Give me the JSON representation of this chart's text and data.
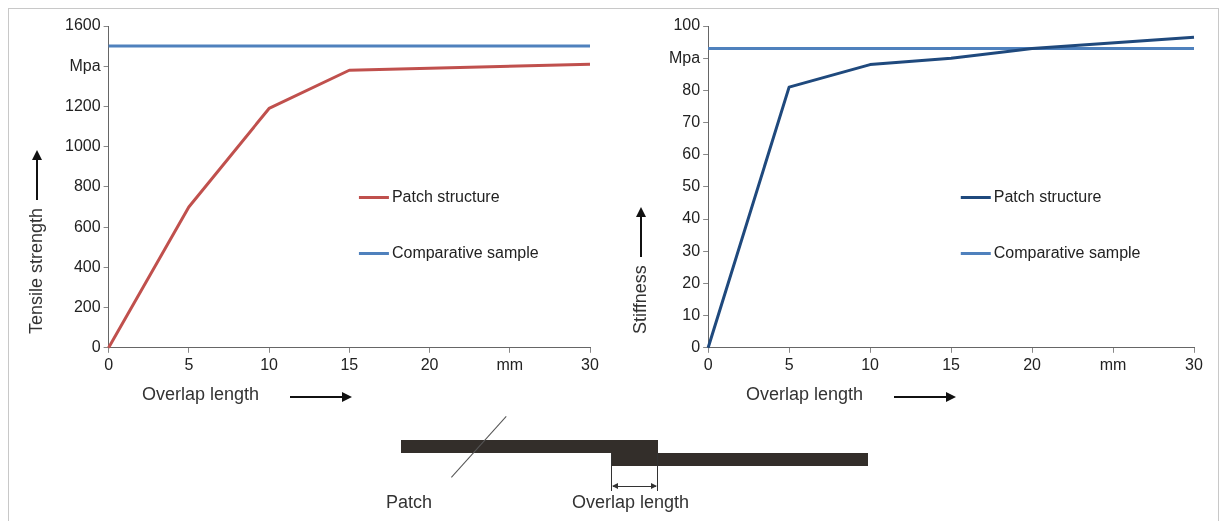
{
  "chart_data": [
    {
      "type": "line",
      "ylabel": "Tensile strength",
      "xlabel": "Overlap length",
      "x": [
        0,
        5,
        10,
        15,
        30
      ],
      "xlim": [
        0,
        30
      ],
      "xticks": [
        0,
        5,
        10,
        15,
        20,
        {
          "value": 25,
          "label": "mm"
        },
        30
      ],
      "ylim": [
        0,
        1600
      ],
      "yticks": [
        0,
        200,
        400,
        600,
        800,
        1000,
        1200,
        {
          "value": 1400,
          "label": "Mpa"
        },
        1600
      ],
      "legend": "center right",
      "marker": "none",
      "line_style": "solid",
      "grid": false,
      "series": [
        {
          "name": "Patch structure",
          "color": "#c0504d",
          "values": [
            0,
            700,
            1190,
            1380,
            1410
          ]
        }
      ],
      "ref_lines": [
        {
          "axis": "y",
          "value": 1500,
          "label": "Comparative sample",
          "color": "#4f81bd"
        }
      ]
    },
    {
      "type": "line",
      "ylabel": "Stiffness",
      "xlabel": "Overlap length",
      "x": [
        0,
        5,
        10,
        15,
        20,
        30
      ],
      "xlim": [
        0,
        30
      ],
      "xticks": [
        0,
        5,
        10,
        15,
        20,
        {
          "value": 25,
          "label": "mm"
        },
        30
      ],
      "ylim": [
        0,
        100
      ],
      "yticks": [
        0,
        10,
        20,
        30,
        40,
        50,
        60,
        70,
        80,
        {
          "value": 90,
          "label": "Mpa"
        },
        100
      ],
      "legend": "center right",
      "marker": "none",
      "line_style": "solid",
      "grid": false,
      "series": [
        {
          "name": "Patch structure",
          "color": "#1f497d",
          "values": [
            0,
            81,
            88,
            90,
            93,
            96.5
          ]
        }
      ],
      "ref_lines": [
        {
          "axis": "y",
          "value": 93,
          "label": "Comparative sample",
          "color": "#4f81bd"
        }
      ]
    },
    {
      "type": "other",
      "annotations": [
        "Patch",
        "Overlap length"
      ]
    }
  ]
}
